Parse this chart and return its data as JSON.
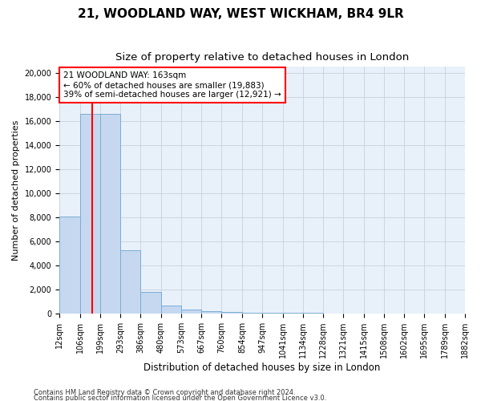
{
  "title": "21, WOODLAND WAY, WEST WICKHAM, BR4 9LR",
  "subtitle": "Size of property relative to detached houses in London",
  "xlabel": "Distribution of detached houses by size in London",
  "ylabel": "Number of detached properties",
  "footer_line1": "Contains HM Land Registry data © Crown copyright and database right 2024.",
  "footer_line2": "Contains public sector information licensed under the Open Government Licence v3.0.",
  "bar_color": "#c5d8f0",
  "bar_edge_color": "#7badd4",
  "background_color": "#e8f0fa",
  "annotation_text": "21 WOODLAND WAY: 163sqm\n← 60% of detached houses are smaller (19,883)\n39% of semi-detached houses are larger (12,921) →",
  "annotation_box_color": "white",
  "annotation_edge_color": "red",
  "vline_x": 163,
  "vline_color": "red",
  "bins": [
    12,
    106,
    199,
    293,
    386,
    480,
    573,
    667,
    760,
    854,
    947,
    1041,
    1134,
    1228,
    1321,
    1415,
    1508,
    1602,
    1695,
    1789,
    1882
  ],
  "counts": [
    8100,
    16600,
    16600,
    5300,
    1800,
    650,
    350,
    220,
    130,
    100,
    80,
    60,
    50,
    40,
    35,
    30,
    25,
    20,
    18,
    15
  ],
  "ylim": [
    0,
    20500
  ],
  "yticks": [
    0,
    2000,
    4000,
    6000,
    8000,
    10000,
    12000,
    14000,
    16000,
    18000,
    20000
  ],
  "grid_color": "#c8d0dc",
  "title_fontsize": 11,
  "subtitle_fontsize": 9.5,
  "tick_fontsize": 7,
  "ylabel_fontsize": 8,
  "xlabel_fontsize": 8.5,
  "annotation_fontsize": 7.5
}
